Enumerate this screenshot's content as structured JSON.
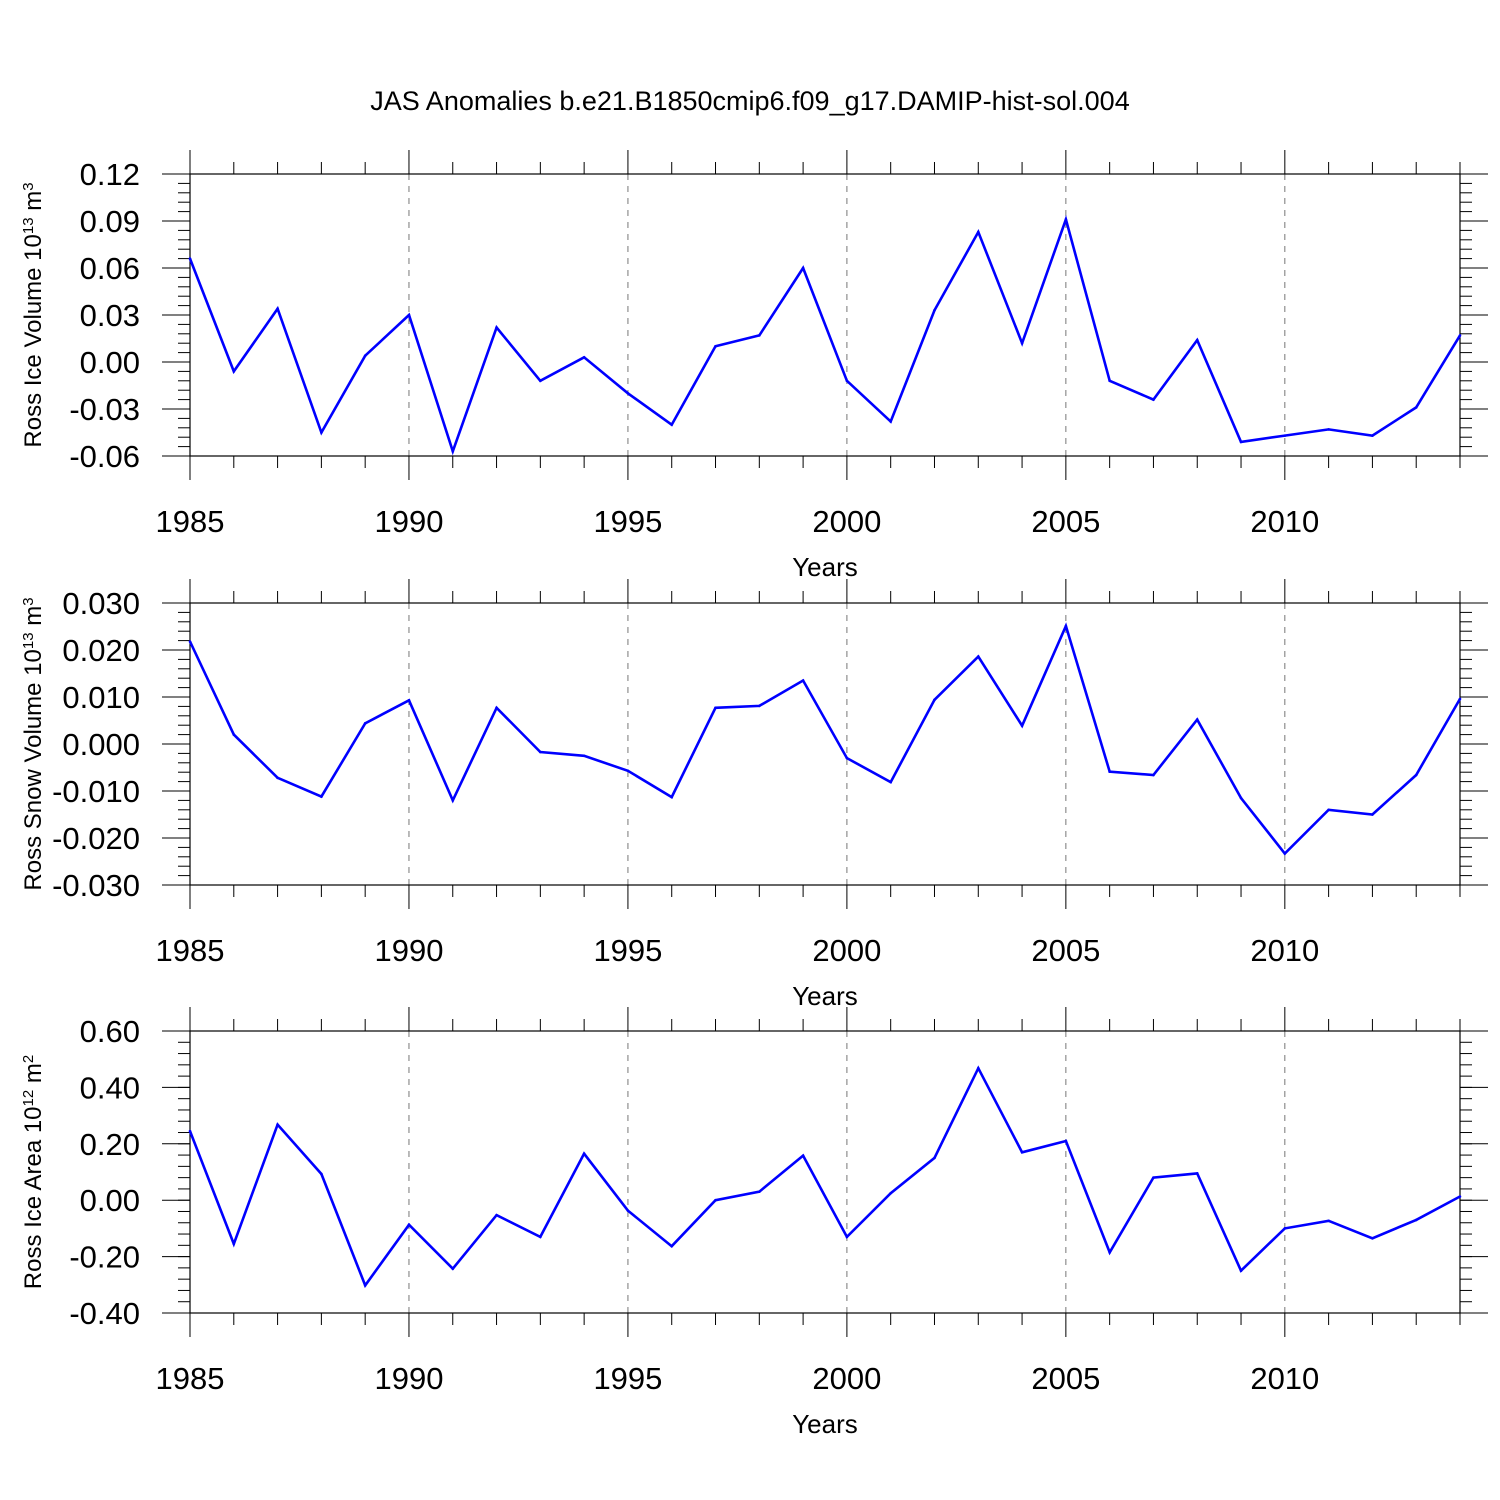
{
  "title": "JAS Anomalies b.e21.B1850cmip6.f09_g17.DAMIP-hist-sol.004",
  "colors": {
    "series": "#0000ff",
    "axis": "#000000",
    "grid": "#777777"
  },
  "chart_data": [
    {
      "type": "line",
      "title": "JAS Anomalies b.e21.B1850cmip6.f09_g17.DAMIP-hist-sol.004",
      "xlabel": "Years",
      "ylabel": {
        "text": "Ross Ice Volume 10",
        "exp": "13",
        "unit": " m",
        "unit_exp": "3"
      },
      "xlim": [
        1985,
        2014
      ],
      "ylim": [
        -0.06,
        0.12
      ],
      "grid": "vertical-dashed-at-major-ticks",
      "x_ticks": [
        1985,
        1990,
        1995,
        2000,
        2005,
        2010
      ],
      "x_tick_labels": [
        "1985",
        "1990",
        "1995",
        "2000",
        "2005",
        "2010"
      ],
      "y_ticks": [
        -0.06,
        -0.03,
        0.0,
        0.03,
        0.06,
        0.09,
        0.12
      ],
      "y_tick_labels": [
        "-0.06",
        "-0.03",
        "0.00",
        "0.03",
        "0.06",
        "0.09",
        "0.12"
      ],
      "y_minor_step": 0.006,
      "x": [
        1985,
        1986,
        1987,
        1988,
        1989,
        1990,
        1991,
        1992,
        1993,
        1994,
        1995,
        1996,
        1997,
        1998,
        1999,
        2000,
        2001,
        2002,
        2003,
        2004,
        2005,
        2006,
        2007,
        2008,
        2009,
        2010,
        2011,
        2012,
        2013,
        2014
      ],
      "series": [
        {
          "name": "Ross Ice Volume",
          "values": [
            0.066,
            -0.006,
            0.034,
            -0.045,
            0.004,
            0.03,
            -0.057,
            0.022,
            -0.012,
            0.003,
            -0.02,
            -0.04,
            0.01,
            0.017,
            0.06,
            -0.012,
            -0.038,
            0.033,
            0.083,
            0.012,
            0.091,
            -0.012,
            -0.024,
            0.014,
            -0.051,
            -0.047,
            -0.043,
            -0.047,
            -0.029,
            0.017
          ]
        }
      ]
    },
    {
      "type": "line",
      "xlabel": "Years",
      "ylabel": {
        "text": "Ross Snow Volume 10",
        "exp": "13",
        "unit": " m",
        "unit_exp": "3"
      },
      "xlim": [
        1985,
        2014
      ],
      "ylim": [
        -0.03,
        0.03
      ],
      "grid": "vertical-dashed-at-major-ticks",
      "x_ticks": [
        1985,
        1990,
        1995,
        2000,
        2005,
        2010
      ],
      "x_tick_labels": [
        "1985",
        "1990",
        "1995",
        "2000",
        "2005",
        "2010"
      ],
      "y_ticks": [
        -0.03,
        -0.02,
        -0.01,
        0.0,
        0.01,
        0.02,
        0.03
      ],
      "y_tick_labels": [
        "-0.030",
        "-0.020",
        "-0.010",
        "0.000",
        "0.010",
        "0.020",
        "0.030"
      ],
      "y_minor_step": 0.002,
      "x": [
        1985,
        1986,
        1987,
        1988,
        1989,
        1990,
        1991,
        1992,
        1993,
        1994,
        1995,
        1996,
        1997,
        1998,
        1999,
        2000,
        2001,
        2002,
        2003,
        2004,
        2005,
        2006,
        2007,
        2008,
        2009,
        2010,
        2011,
        2012,
        2013,
        2014
      ],
      "series": [
        {
          "name": "Ross Snow Volume",
          "values": [
            0.0218,
            0.002,
            -0.0072,
            -0.0112,
            0.0044,
            0.0093,
            -0.012,
            0.0077,
            -0.0017,
            -0.0025,
            -0.0057,
            -0.0113,
            0.0077,
            0.0081,
            0.0135,
            -0.003,
            -0.0081,
            0.0094,
            0.0186,
            0.0039,
            0.0251,
            -0.0059,
            -0.0066,
            0.0052,
            -0.0115,
            -0.0233,
            -0.014,
            -0.015,
            -0.0066,
            0.0096
          ]
        }
      ]
    },
    {
      "type": "line",
      "xlabel": "Years",
      "ylabel": {
        "text": "Ross Ice Area 10",
        "exp": "12",
        "unit": " m",
        "unit_exp": "2"
      },
      "xlim": [
        1985,
        2014
      ],
      "ylim": [
        -0.4,
        0.6
      ],
      "grid": "vertical-dashed-at-major-ticks",
      "x_ticks": [
        1985,
        1990,
        1995,
        2000,
        2005,
        2010
      ],
      "x_tick_labels": [
        "1985",
        "1990",
        "1995",
        "2000",
        "2005",
        "2010"
      ],
      "y_ticks": [
        -0.4,
        -0.2,
        0.0,
        0.2,
        0.4,
        0.6
      ],
      "y_tick_labels": [
        "-0.40",
        "-0.20",
        "0.00",
        "0.20",
        "0.40",
        "0.60"
      ],
      "y_minor_step": 0.04,
      "x": [
        1985,
        1986,
        1987,
        1988,
        1989,
        1990,
        1991,
        1992,
        1993,
        1994,
        1995,
        1996,
        1997,
        1998,
        1999,
        2000,
        2001,
        2002,
        2003,
        2004,
        2005,
        2006,
        2007,
        2008,
        2009,
        2010,
        2011,
        2012,
        2013,
        2014
      ],
      "series": [
        {
          "name": "Ross Ice Area",
          "values": [
            0.245,
            -0.155,
            0.268,
            0.093,
            -0.302,
            -0.087,
            -0.243,
            -0.053,
            -0.13,
            0.165,
            -0.037,
            -0.163,
            0.0,
            0.03,
            0.158,
            -0.13,
            0.025,
            0.15,
            0.468,
            0.17,
            0.21,
            -0.185,
            0.08,
            0.095,
            -0.25,
            -0.1,
            -0.073,
            -0.135,
            -0.07,
            0.013
          ]
        }
      ]
    }
  ]
}
